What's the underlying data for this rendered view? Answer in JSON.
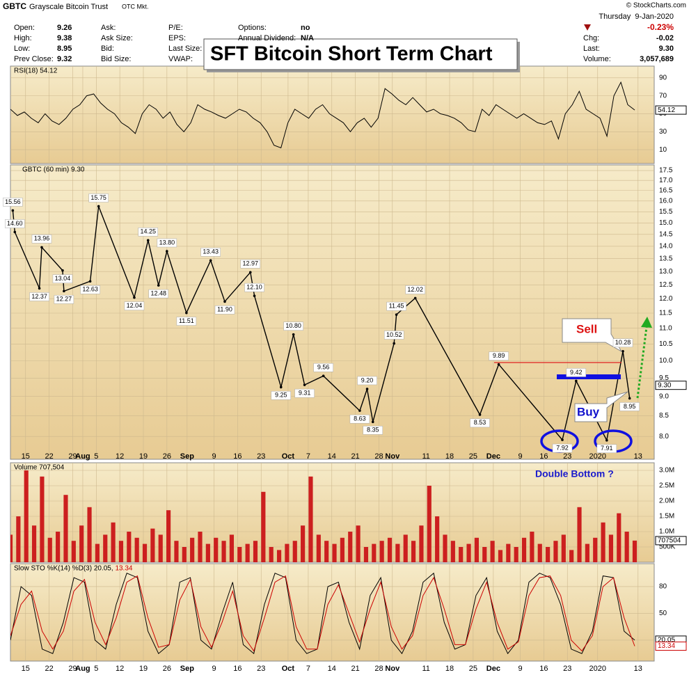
{
  "header": {
    "symbol": "GBTC",
    "name": "Grayscale Bitcoin Trust",
    "market": "OTC Mkt.",
    "copyright": "© StockCharts.com",
    "title": "SFT Bitcoin Short Term Chart",
    "quote_columns": [
      [
        {
          "label": "Open:",
          "value": "9.26"
        },
        {
          "label": "High:",
          "value": "9.38"
        },
        {
          "label": "Low:",
          "value": "8.95"
        },
        {
          "label": "Prev Close:",
          "value": "9.32"
        }
      ],
      [
        {
          "label": "Ask:"
        },
        {
          "label": "Ask Size:"
        },
        {
          "label": "Bid:"
        },
        {
          "label": "Bid Size:"
        }
      ],
      [
        {
          "label": "P/E:"
        },
        {
          "label": "EPS:"
        },
        {
          "label": "Last Size:"
        },
        {
          "label": "VWAP:"
        }
      ],
      [
        {
          "label": "Options:",
          "value": "no"
        },
        {
          "label": "Annual Dividend:",
          "value": "N/A"
        }
      ]
    ],
    "date": "Thursday  9-Jan-2020",
    "change_pct": "-0.23%",
    "summary": [
      {
        "label": "Chg:",
        "value": "-0.02"
      },
      {
        "label": "Last:",
        "value": "9.30"
      },
      {
        "label": "Volume:",
        "value": "3,057,689"
      }
    ]
  },
  "chart_data": [
    {
      "type": "line",
      "legend": "RSI(18) 54.12",
      "ylim": [
        -5.4,
        103
      ],
      "yticks": [
        10,
        30,
        50,
        70,
        90
      ],
      "series": [
        {
          "color": "#000000",
          "values": [
            55,
            48,
            52,
            45,
            40,
            50,
            42,
            38,
            45,
            55,
            60,
            70,
            72,
            62,
            55,
            50,
            40,
            35,
            28,
            50,
            60,
            55,
            45,
            52,
            38,
            30,
            40,
            60,
            55,
            52,
            48,
            45,
            50,
            55,
            52,
            45,
            40,
            30,
            15,
            12,
            40,
            55,
            50,
            45,
            55,
            60,
            50,
            45,
            40,
            30,
            40,
            45,
            35,
            45,
            78,
            72,
            65,
            60,
            68,
            60,
            52,
            55,
            50,
            48,
            45,
            40,
            32,
            30,
            55,
            48,
            60,
            55,
            50,
            45,
            50,
            45,
            40,
            38,
            42,
            22,
            50,
            60,
            75,
            55,
            50,
            45,
            25,
            70,
            85,
            60,
            54.12
          ]
        }
      ]
    },
    {
      "type": "line",
      "legend": "GBTC (60 min) 9.30",
      "log_scale": true,
      "ylim": [
        7.48,
        17.79
      ],
      "yticks": [
        {
          "value": 8,
          "label": "8.0"
        },
        {
          "value": 8.5,
          "label": "8.5"
        },
        {
          "value": 9,
          "label": "9.0"
        },
        {
          "value": 9.5,
          "label": "9.5"
        },
        {
          "value": 10,
          "label": "10.0"
        },
        {
          "value": 10.5,
          "label": "10.5"
        },
        {
          "value": 11,
          "label": "11.0"
        },
        {
          "value": 11.5,
          "label": "11.5"
        },
        {
          "value": 12,
          "label": "12.0"
        },
        {
          "value": 12.5,
          "label": "12.5"
        },
        {
          "value": 13,
          "label": "13.0"
        },
        {
          "value": 13.5,
          "label": "13.5"
        },
        {
          "value": 14,
          "label": "14.0"
        },
        {
          "value": 14.5,
          "label": "14.5"
        },
        {
          "value": 15,
          "label": "15.0"
        },
        {
          "value": 15.5,
          "label": "15.5"
        },
        {
          "value": 16,
          "label": "16.0"
        },
        {
          "value": 16.5,
          "label": "16.5"
        },
        {
          "value": 17,
          "label": "17.0"
        },
        {
          "value": 17.5,
          "label": "17.5"
        }
      ],
      "xlim": [
        -4.5,
        186.8
      ],
      "xticks": [
        {
          "value": 0,
          "label": "15"
        },
        {
          "value": 7,
          "label": "22"
        },
        {
          "value": 14,
          "label": "29"
        },
        {
          "value": 17,
          "label": "Aug"
        },
        {
          "value": 21,
          "label": "5"
        },
        {
          "value": 28,
          "label": "12"
        },
        {
          "value": 35,
          "label": "19"
        },
        {
          "value": 42,
          "label": "26"
        },
        {
          "value": 48,
          "label": "Sep"
        },
        {
          "value": 56,
          "label": "9"
        },
        {
          "value": 63,
          "label": "16"
        },
        {
          "value": 70,
          "label": "23"
        },
        {
          "value": 78,
          "label": "Oct"
        },
        {
          "value": 84,
          "label": "7"
        },
        {
          "value": 91,
          "label": "14"
        },
        {
          "value": 98,
          "label": "21"
        },
        {
          "value": 105,
          "label": "28"
        },
        {
          "value": 109,
          "label": "Nov"
        },
        {
          "value": 119,
          "label": "11"
        },
        {
          "value": 126,
          "label": "18"
        },
        {
          "value": 133,
          "label": "25"
        },
        {
          "value": 139,
          "label": "Dec"
        },
        {
          "value": 147,
          "label": "9"
        },
        {
          "value": 154,
          "label": "16"
        },
        {
          "value": 161,
          "label": "23"
        },
        {
          "value": 170,
          "label": "2020"
        },
        {
          "value": 182,
          "label": "13"
        }
      ],
      "current": {
        "value": 9.3,
        "label": "9.30"
      },
      "series": [
        {
          "color": "#000000",
          "x": [
            -3.8,
            -3.2,
            4.1,
            4.8,
            11,
            11.4,
            19.2,
            21.7,
            32.3,
            36.4,
            39.5,
            42,
            47.8,
            55,
            59.2,
            66.8,
            68,
            75.9,
            79.6,
            82.9,
            88.5,
            99.3,
            101.5,
            103.2,
            109.5,
            110.2,
            115.8,
            135,
            140.6,
            159.5,
            163.6,
            172.7,
            177.5,
            179.5
          ],
          "values": [
            15.56,
            14.6,
            12.37,
            13.96,
            13.04,
            12.27,
            12.63,
            15.75,
            12.04,
            14.25,
            12.48,
            13.8,
            11.51,
            13.43,
            11.9,
            12.97,
            12.1,
            9.25,
            10.8,
            9.31,
            9.56,
            8.63,
            9.2,
            8.35,
            10.52,
            11.45,
            12.02,
            8.53,
            9.89,
            7.92,
            9.42,
            7.91,
            10.28,
            8.95
          ],
          "value_labels": [
            "15.56",
            "14.60",
            "12.37",
            "13.96",
            "13.04",
            "12.27",
            "12.63",
            "15.75",
            "12.04",
            "14.25",
            "12.48",
            "13.80",
            "11.51",
            "13.43",
            "11.90",
            "12.97",
            "12.10",
            "9.25",
            "10.80",
            "9.31",
            "9.56",
            "8.63",
            "9.20",
            "8.35",
            "10.52",
            "11.45",
            "12.02",
            "8.53",
            "9.89",
            "7.92",
            "9.42",
            "7.91",
            "10.28",
            "8.95"
          ]
        }
      ],
      "annotations": {
        "sell": "Sell",
        "buy": "Buy",
        "double_bottom": "Double Bottom ?"
      }
    },
    {
      "type": "bar",
      "legend": "Volume 707,504",
      "ylim": [
        0,
        3250000
      ],
      "yticks": [
        {
          "value": 500000,
          "label": "500K"
        },
        {
          "value": 1000000,
          "label": "1.0M"
        },
        {
          "value": 1500000,
          "label": "1.5M"
        },
        {
          "value": 2000000,
          "label": "2.0M"
        },
        {
          "value": 2500000,
          "label": "2.5M"
        },
        {
          "value": 3000000,
          "label": "3.0M"
        }
      ],
      "series": [
        {
          "color": "#cc1f1f",
          "values": [
            900000,
            1500000,
            3000000,
            1200000,
            2800000,
            800000,
            1000000,
            2200000,
            700000,
            1200000,
            1800000,
            600000,
            900000,
            1300000,
            700000,
            1000000,
            800000,
            600000,
            1100000,
            900000,
            1700000,
            700000,
            500000,
            800000,
            1000000,
            600000,
            800000,
            700000,
            900000,
            500000,
            600000,
            700000,
            2300000,
            500000,
            400000,
            600000,
            700000,
            1200000,
            2800000,
            900000,
            700000,
            600000,
            800000,
            1000000,
            1200000,
            500000,
            600000,
            700000,
            800000,
            600000,
            900000,
            700000,
            1200000,
            2500000,
            1500000,
            900000,
            700000,
            500000,
            600000,
            800000,
            500000,
            700000,
            400000,
            600000,
            500000,
            800000,
            1000000,
            600000,
            500000,
            700000,
            900000,
            400000,
            1800000,
            600000,
            800000,
            1300000,
            900000,
            1600000,
            1000000,
            707504
          ]
        }
      ]
    },
    {
      "type": "line",
      "legend": [
        "Slow STO %K(14) %D(3) 20.05, ",
        "13.34"
      ],
      "ylim": [
        -3.4,
        105.7
      ],
      "yticks": [
        20,
        50,
        80
      ],
      "series": [
        {
          "color": "#000000",
          "values": [
            20,
            80,
            70,
            10,
            5,
            40,
            90,
            85,
            20,
            10,
            60,
            95,
            90,
            30,
            5,
            15,
            85,
            90,
            20,
            10,
            50,
            85,
            15,
            5,
            60,
            95,
            90,
            20,
            5,
            10,
            80,
            85,
            40,
            10,
            70,
            90,
            20,
            5,
            30,
            85,
            95,
            40,
            10,
            15,
            70,
            90,
            30,
            5,
            20,
            85,
            95,
            90,
            60,
            10,
            5,
            30,
            92,
            90,
            30,
            20.05
          ]
        },
        {
          "color": "#cc0000",
          "values": [
            25,
            60,
            75,
            30,
            10,
            30,
            75,
            88,
            40,
            15,
            45,
            85,
            92,
            45,
            12,
            15,
            65,
            88,
            35,
            12,
            40,
            75,
            25,
            8,
            45,
            85,
            92,
            35,
            10,
            10,
            60,
            82,
            50,
            18,
            55,
            85,
            35,
            10,
            25,
            70,
            90,
            55,
            15,
            15,
            55,
            85,
            40,
            10,
            18,
            70,
            90,
            92,
            70,
            20,
            8,
            25,
            80,
            90,
            45,
            13.34
          ]
        }
      ]
    }
  ]
}
